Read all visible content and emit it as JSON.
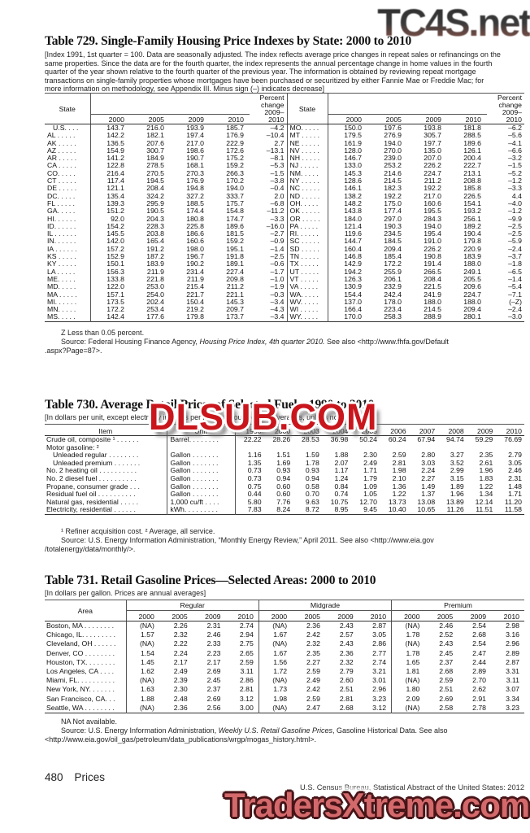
{
  "watermarks": {
    "top_right": "TC4S.net",
    "center": "DLSUB.COM",
    "bottom": "TradersXtreme.com"
  },
  "table729": {
    "title": "Table 729. Single-Family Housing Price Indexes by State: 2000 to 2010",
    "note": "[Index 1991, 1st quarter = 100. Data are seasonally adjusted. The index reflects average price changes in repeat sales or refinancings on the same properties. Since the data are for the fourth quarter, the index represents the annual percentage change in home values in the fourth quarter of the year shown relative to the fourth quarter of the previous year. The information is obtained by reviewing repeat mortgage transactions on single-family properties whose mortgages have been purchased or securitized by either Fannie Mae or Freddie Mac; for more information on methodology, see Appendix III. Minus sign (–) indicates decrease]",
    "col_state": "State",
    "pct_header": "Percent\nchange\n2009–\n2010",
    "years": [
      "2000",
      "2005",
      "2009",
      "2010"
    ],
    "left_rows": [
      {
        "label": "U.S. . . .",
        "b": true,
        "vals": [
          "143.7",
          "216.0",
          "193.9",
          "185.7",
          "–4.2"
        ]
      },
      {
        "label": "AL . . . . .",
        "vals": [
          "142.2",
          "182.1",
          "197.4",
          "176.9",
          "–10.4"
        ]
      },
      {
        "label": "AK . . . . .",
        "vals": [
          "136.5",
          "207.6",
          "217.0",
          "222.9",
          "2.7"
        ]
      },
      {
        "label": "AZ . . . . .",
        "vals": [
          "154.9",
          "300.7",
          "198.6",
          "172.6",
          "–13.1"
        ]
      },
      {
        "label": "AR . . . . .",
        "vals": [
          "141.2",
          "184.9",
          "190.7",
          "175.2",
          "–8.1"
        ]
      },
      {
        "label": "CA . . . . .",
        "vals": [
          "122.8",
          "278.5",
          "168.1",
          "159.2",
          "–5.3"
        ]
      },
      {
        "label": "CO. . . . .",
        "vals": [
          "216.4",
          "270.5",
          "270.3",
          "266.3",
          "–1.5"
        ]
      },
      {
        "label": "CT . . . . .",
        "vals": [
          "117.4",
          "194.5",
          "176.9",
          "170.2",
          "–3.8"
        ]
      },
      {
        "label": "DE . . . . .",
        "vals": [
          "121.1",
          "208.4",
          "194.8",
          "194.0",
          "–0.4"
        ]
      },
      {
        "label": "DC. . . . .",
        "vals": [
          "135.4",
          "324.2",
          "327.2",
          "333.7",
          "2.0"
        ]
      },
      {
        "label": "FL . . . . .",
        "vals": [
          "139.3",
          "295.9",
          "188.5",
          "175.7",
          "–6.8"
        ]
      },
      {
        "label": "GA. . . . .",
        "vals": [
          "151.2",
          "190.5",
          "174.4",
          "154.8",
          "–11.2"
        ]
      },
      {
        "label": "HI. . . . . .",
        "vals": [
          "92.0",
          "204.3",
          "180.8",
          "174.7",
          "–3.3"
        ]
      },
      {
        "label": "ID. . . . . .",
        "vals": [
          "154.2",
          "228.3",
          "225.8",
          "189.6",
          "–16.0"
        ]
      },
      {
        "label": "IL . . . . . .",
        "vals": [
          "145.5",
          "203.8",
          "186.6",
          "181.5",
          "–2.7"
        ]
      },
      {
        "label": "IN. . . . . .",
        "vals": [
          "142.0",
          "165.4",
          "160.6",
          "159.2",
          "–0.9"
        ]
      },
      {
        "label": "IA . . . . . .",
        "vals": [
          "157.2",
          "191.2",
          "198.0",
          "195.1",
          "–1.4"
        ]
      },
      {
        "label": "KS . . . . .",
        "vals": [
          "152.9",
          "187.2",
          "196.7",
          "191.8",
          "–2.5"
        ]
      },
      {
        "label": "KY . . . . .",
        "vals": [
          "150.1",
          "183.9",
          "190.2",
          "189.1",
          "–0.6"
        ]
      },
      {
        "label": "LA . . . . .",
        "vals": [
          "156.3",
          "211.9",
          "231.4",
          "227.4",
          "–1.7"
        ]
      },
      {
        "label": "ME. . . . .",
        "vals": [
          "133.8",
          "221.8",
          "211.9",
          "209.8",
          "–1.0"
        ]
      },
      {
        "label": "MD. . . . .",
        "vals": [
          "122.0",
          "253.0",
          "215.4",
          "211.2",
          "–1.9"
        ]
      },
      {
        "label": "MA . . . . .",
        "vals": [
          "157.1",
          "254.0",
          "221.7",
          "221.1",
          "–0.3"
        ]
      },
      {
        "label": "MI. . . . . .",
        "vals": [
          "173.5",
          "202.4",
          "150.4",
          "145.3",
          "–3.4"
        ]
      },
      {
        "label": "MN. . . . .",
        "vals": [
          "172.2",
          "253.4",
          "219.2",
          "209.7",
          "–4.3"
        ]
      },
      {
        "label": "MS. . . . .",
        "vals": [
          "142.4",
          "177.6",
          "179.8",
          "173.7",
          "–3.4"
        ]
      }
    ],
    "right_rows": [
      {
        "label": "MO. . . . .",
        "vals": [
          "150.0",
          "197.6",
          "193.8",
          "181.8",
          "–6.2"
        ]
      },
      {
        "label": "MT . . . . .",
        "vals": [
          "179.5",
          "276.9",
          "305.7",
          "288.5",
          "–5.6"
        ]
      },
      {
        "label": "NE . . . . .",
        "vals": [
          "161.9",
          "194.0",
          "197.7",
          "189.6",
          "–4.1"
        ]
      },
      {
        "label": "NV . . . . .",
        "vals": [
          "128.0",
          "270.0",
          "135.0",
          "126.1",
          "–6.6"
        ]
      },
      {
        "label": "NH . . . . .",
        "vals": [
          "146.7",
          "239.0",
          "207.0",
          "200.4",
          "–3.2"
        ]
      },
      {
        "label": "NJ . . . . .",
        "vals": [
          "133.0",
          "253.2",
          "226.2",
          "222.7",
          "–1.5"
        ]
      },
      {
        "label": "NM. . . . .",
        "vals": [
          "145.3",
          "214.6",
          "224.7",
          "213.1",
          "–5.2"
        ]
      },
      {
        "label": "NY . . . . .",
        "vals": [
          "128.6",
          "214.5",
          "211.2",
          "208.8",
          "–1.2"
        ]
      },
      {
        "label": "NC . . . . .",
        "vals": [
          "146.1",
          "182.3",
          "192.2",
          "185.8",
          "–3.3"
        ]
      },
      {
        "label": "ND . . . . .",
        "vals": [
          "138.2",
          "192.2",
          "217.0",
          "226.5",
          "4.4"
        ]
      },
      {
        "label": "OH. . . . .",
        "vals": [
          "148.2",
          "175.0",
          "160.6",
          "154.1",
          "–4.0"
        ]
      },
      {
        "label": "OK . . . . .",
        "vals": [
          "143.8",
          "177.4",
          "195.5",
          "193.2",
          "–1.2"
        ]
      },
      {
        "label": "OR . . . . .",
        "vals": [
          "184.0",
          "297.0",
          "284.3",
          "256.1",
          "–9.9"
        ]
      },
      {
        "label": "PA . . . . .",
        "vals": [
          "121.4",
          "190.3",
          "194.0",
          "189.2",
          "–2.5"
        ]
      },
      {
        "label": "RI. . . . . .",
        "vals": [
          "119.6",
          "234.5",
          "195.4",
          "190.4",
          "–2.5"
        ]
      },
      {
        "label": "SC . . . . .",
        "vals": [
          "144.7",
          "184.5",
          "191.0",
          "179.8",
          "–5.9"
        ]
      },
      {
        "label": "SD . . . . .",
        "vals": [
          "160.4",
          "209.4",
          "226.2",
          "220.9",
          "–2.4"
        ]
      },
      {
        "label": "TN . . . . .",
        "vals": [
          "146.8",
          "185.4",
          "190.8",
          "183.9",
          "–3.7"
        ]
      },
      {
        "label": "TX . . . . .",
        "vals": [
          "142.9",
          "172.2",
          "191.4",
          "188.0",
          "–1.8"
        ]
      },
      {
        "label": "UT . . . . .",
        "vals": [
          "194.2",
          "255.9",
          "266.5",
          "249.1",
          "–6.5"
        ]
      },
      {
        "label": "VT . . . . .",
        "vals": [
          "126.3",
          "206.1",
          "208.4",
          "205.5",
          "–1.4"
        ]
      },
      {
        "label": "VA . . . . .",
        "vals": [
          "130.9",
          "232.9",
          "221.5",
          "209.6",
          "–5.4"
        ]
      },
      {
        "label": "WA. . . . .",
        "vals": [
          "154.4",
          "242.4",
          "241.9",
          "224.7",
          "–7.1"
        ]
      },
      {
        "label": "WV. . . . .",
        "vals": [
          "137.0",
          "178.0",
          "188.0",
          "188.0",
          "(–Z)"
        ]
      },
      {
        "label": "WI . . . . .",
        "vals": [
          "166.4",
          "223.4",
          "214.5",
          "209.4",
          "–2.4"
        ]
      },
      {
        "label": "WY. . . . .",
        "vals": [
          "170.0",
          "258.3",
          "288.9",
          "280.1",
          "–3.0"
        ]
      }
    ],
    "fn_z": "Z Less than 0.05 percent.",
    "source_pre": "Source: Federal Housing Finance Agency, ",
    "source_italic": "Housing Price Index, 4th quarter 2010.",
    "source_post": " See also <http://www.fhfa.gov/Default",
    "source_line2": ".aspx?Page=87>."
  },
  "table730": {
    "title": "Table 730. Average Retail Prices of Selected Fuels: 1990 to 2010",
    "note": "[In dollars per unit, except electricity in cents per kilowatt-hour. Annual averages, unless noted]",
    "col_item": "Item",
    "col_unit": "Unit",
    "years": [
      "1990",
      "2000",
      "2003",
      "2004",
      "2005",
      "2006",
      "2007",
      "2008",
      "2009",
      "2010"
    ],
    "rows": [
      {
        "item": "Crude oil, composite ¹ . . . . . .",
        "unit": "Barrel. . . . . . . .",
        "vals": [
          "22.22",
          "28.26",
          "28.53",
          "36.98",
          "50.24",
          "60.24",
          "67.94",
          "94.74",
          "59.29",
          "76.69"
        ]
      },
      {
        "item": "Motor gasoline: ²",
        "unit": "",
        "vals": []
      },
      {
        "item": "Unleaded regular  . . . . . . . .",
        "indent": true,
        "unit": "Gallon . . . . . . .",
        "vals": [
          "1.16",
          "1.51",
          "1.59",
          "1.88",
          "2.30",
          "2.59",
          "2.80",
          "3.27",
          "2.35",
          "2.79"
        ]
      },
      {
        "item": "Unleaded premium  . . . . . . .",
        "indent": true,
        "unit": "Gallon . . . . . . .",
        "vals": [
          "1.35",
          "1.69",
          "1.78",
          "2.07",
          "2.49",
          "2.81",
          "3.03",
          "3.52",
          "2.61",
          "3.05"
        ]
      },
      {
        "item": "No. 2 heating oil  . . . . . . . . . .",
        "unit": "Gallon . . . . . . .",
        "vals": [
          "0.73",
          "0.93",
          "0.93",
          "1.17",
          "1.71",
          "1.98",
          "2.24",
          "2.99",
          "1.96",
          "2.46"
        ]
      },
      {
        "item": "No. 2 diesel fuel  . . . . . . . . . .",
        "unit": "Gallon . . . . . . .",
        "vals": [
          "0.73",
          "0.94",
          "0.94",
          "1.24",
          "1.79",
          "2.10",
          "2.27",
          "3.15",
          "1.83",
          "2.31"
        ]
      },
      {
        "item": "Propane, consumer grade . . .",
        "unit": "Gallon . . . . . . .",
        "vals": [
          "0.75",
          "0.60",
          "0.58",
          "0.84",
          "1.09",
          "1.36",
          "1.49",
          "1.89",
          "1.22",
          "1.48"
        ]
      },
      {
        "item": "Residual fuel oil  . . . . . . . . . .",
        "unit": "Gallon . . . . . . .",
        "vals": [
          "0.44",
          "0.60",
          "0.70",
          "0.74",
          "1.05",
          "1.22",
          "1.37",
          "1.96",
          "1.34",
          "1.71"
        ]
      },
      {
        "item": "Natural gas, residential . . . . .",
        "unit": "1,000 cu/ft . . . .",
        "vals": [
          "5.80",
          "7.76",
          "9.63",
          "10.75",
          "12.70",
          "13.73",
          "13.08",
          "13.89",
          "12.14",
          "11.20"
        ]
      },
      {
        "item": "Electricity, residential  . . . . . .",
        "unit": "kWh. . . . . . . . .",
        "vals": [
          "7.83",
          "8.24",
          "8.72",
          "8.95",
          "9.45",
          "10.40",
          "10.65",
          "11.26",
          "11.51",
          "11.58"
        ]
      }
    ],
    "fn1": "¹ Refiner acquisition cost. ² Average, all service.",
    "source_line1": "Source: U.S. Energy Information Administration, “Monthly Energy Review,” April 2011. See also <http://www.eia.gov",
    "source_line2": "/totalenergy/data/monthly/>."
  },
  "table731": {
    "title": "Table 731. Retail Gasoline Prices—Selected Areas: 2000 to 2010",
    "note": "[In dollars per gallon. Prices are annual averages]",
    "col_area": "Area",
    "groups": [
      "Regular",
      "Midgrade",
      "Premium"
    ],
    "years": [
      "2000",
      "2005",
      "2009",
      "2010"
    ],
    "rows": [
      {
        "area": "Boston, MA . . . . . . . .",
        "vals": [
          "(NA)",
          "2.26",
          "2.31",
          "2.74",
          "(NA)",
          "2.36",
          "2.43",
          "2.87",
          "(NA)",
          "2.46",
          "2.54",
          "2.98"
        ]
      },
      {
        "area": "Chicago, IL. . . . . . . . .",
        "vals": [
          "1.57",
          "2.32",
          "2.46",
          "2.94",
          "1.67",
          "2.42",
          "2.57",
          "3.05",
          "1.78",
          "2.52",
          "2.68",
          "3.16"
        ]
      },
      {
        "area": "Cleveland, OH . . . . . .",
        "vals": [
          "(NA)",
          "2.22",
          "2.33",
          "2.75",
          "(NA)",
          "2.32",
          "2.43",
          "2.86",
          "(NA)",
          "2.43",
          "2.54",
          "2.96"
        ]
      },
      {
        "area": "Denver, CO . . . . . . . .",
        "vals": [
          "1.54",
          "2.24",
          "2.23",
          "2.65",
          "1.67",
          "2.35",
          "2.36",
          "2.77",
          "1.78",
          "2.45",
          "2.47",
          "2.89"
        ]
      },
      {
        "area": "Houston, TX. . . . . . . .",
        "vals": [
          "1.45",
          "2.17",
          "2.17",
          "2.59",
          "1.56",
          "2.27",
          "2.32",
          "2.74",
          "1.65",
          "2.37",
          "2.44",
          "2.87"
        ]
      },
      {
        "area": "Los Angeles, CA . . . .",
        "vals": [
          "1.62",
          "2.49",
          "2.69",
          "3.11",
          "1.72",
          "2.59",
          "2.79",
          "3.21",
          "1.81",
          "2.68",
          "2.89",
          "3.31"
        ]
      },
      {
        "area": "Miami, FL. . . . . . . . . .",
        "vals": [
          "(NA)",
          "2.39",
          "2.45",
          "2.86",
          "(NA)",
          "2.49",
          "2.60",
          "3.01",
          "(NA)",
          "2.59",
          "2.70",
          "3.11"
        ]
      },
      {
        "area": "New York, NY. . . . . . .",
        "vals": [
          "1.63",
          "2.30",
          "2.37",
          "2.81",
          "1.73",
          "2.42",
          "2.51",
          "2.96",
          "1.80",
          "2.51",
          "2.62",
          "3.07"
        ]
      },
      {
        "area": "San Francisco, CA. . .",
        "vals": [
          "1.88",
          "2.48",
          "2.69",
          "3.12",
          "1.98",
          "2.59",
          "2.81",
          "3.23",
          "2.09",
          "2.69",
          "2.91",
          "3.34"
        ]
      },
      {
        "area": "Seattle, WA . . . . . . . .",
        "vals": [
          "(NA)",
          "2.36",
          "2.56",
          "3.00",
          "(NA)",
          "2.47",
          "2.68",
          "3.12",
          "(NA)",
          "2.58",
          "2.78",
          "3.23"
        ]
      }
    ],
    "fn_na": "NA Not available.",
    "source_pre": "Source: U.S. Energy Information Administration, ",
    "source_italic": "Weekly U.S. Retail Gasoline Prices",
    "source_post": ", Gasoline Historical Data. See also",
    "source_line2": "<http://www.eia.gov/oil_gas/petroleum/data_publications/wrgp/mogas_history.html>."
  },
  "footer": {
    "page_number": "480",
    "section": "Prices",
    "credit": "U.S. Census Bureau, Statistical Abstract of the United States: 2012"
  }
}
